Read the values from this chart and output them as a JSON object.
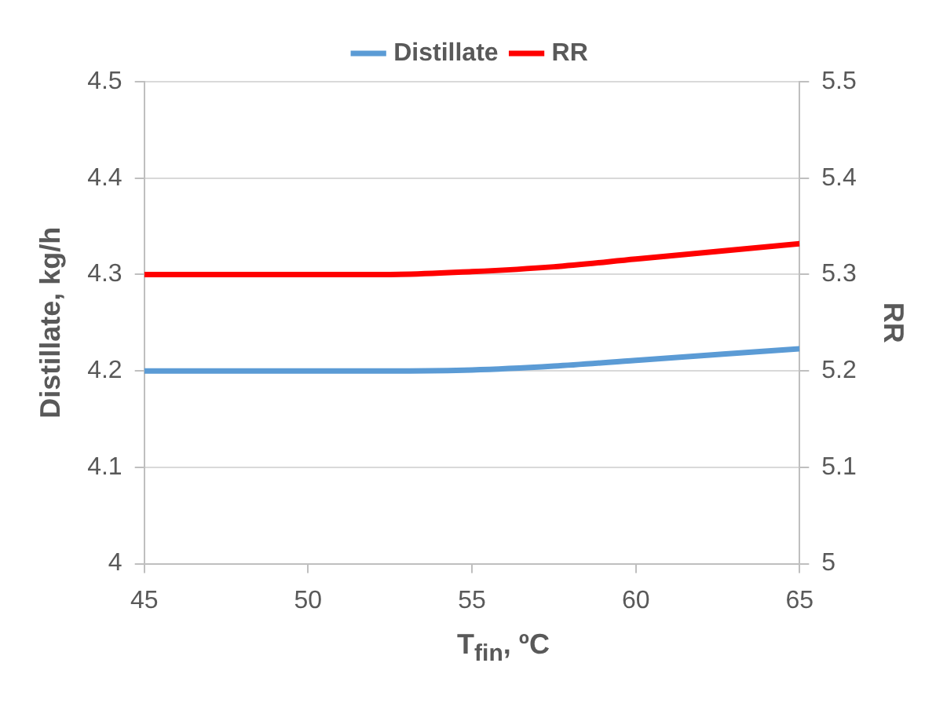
{
  "chart_data": {
    "type": "line",
    "xlabel": "T$_{fin}$, ºC",
    "ylabel": "Distillate, kg/h",
    "y2label": "RR",
    "x": [
      45,
      47.5,
      50,
      52.5,
      55,
      57.5,
      60,
      62.5,
      65
    ],
    "series": [
      {
        "name": "Distillate",
        "color": "#5b9bd5",
        "values": [
          4.2,
          4.2,
          4.2,
          4.2,
          4.201,
          4.205,
          4.211,
          4.217,
          4.223
        ]
      },
      {
        "name": "RR",
        "color": "#ff0000",
        "axis": "y2",
        "values": [
          5.3,
          5.3,
          5.3,
          5.3,
          5.303,
          5.308,
          5.316,
          5.324,
          5.332
        ]
      }
    ],
    "xlim": [
      45,
      65
    ],
    "xticks": [
      45,
      50,
      55,
      60,
      65
    ],
    "ylim": [
      4,
      4.5
    ],
    "yticks": [
      4,
      4.1,
      4.2,
      4.3,
      4.4,
      4.5
    ],
    "y2lim": [
      5,
      5.5
    ],
    "y2ticks": [
      5,
      5.1,
      5.2,
      5.3,
      5.4,
      5.5
    ],
    "grid": "y",
    "legend": "top",
    "marker": "none",
    "line_style": "solid"
  }
}
